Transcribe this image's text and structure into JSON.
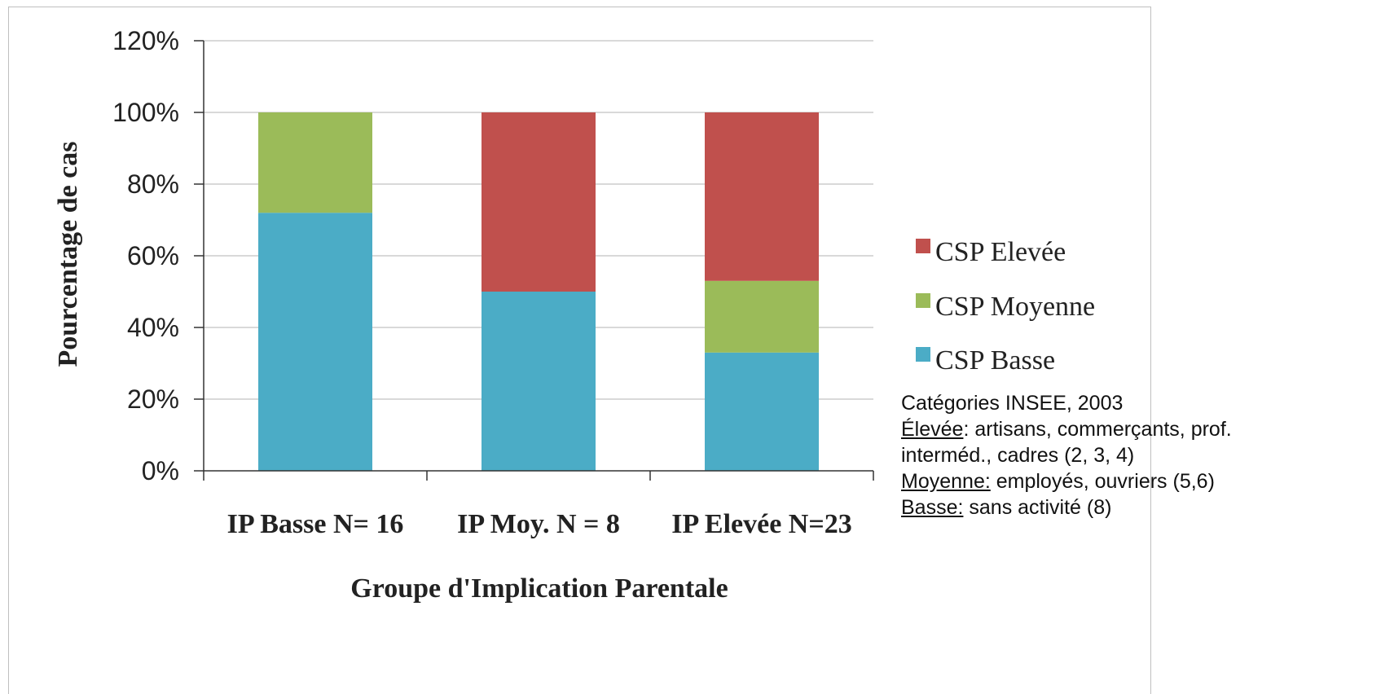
{
  "chart_data": {
    "type": "bar",
    "stacked": true,
    "categories": [
      "IP Basse  N= 16",
      "IP Moy. N = 8",
      "IP Elevée N=23"
    ],
    "series": [
      {
        "name": "CSP Basse",
        "color": "#4bacc6",
        "values": [
          72,
          50,
          33
        ]
      },
      {
        "name": "CSP Moyenne",
        "color": "#9bbb59",
        "values": [
          28,
          0,
          20
        ]
      },
      {
        "name": "CSP Elevée",
        "color": "#c0504d",
        "values": [
          0,
          50,
          47
        ]
      }
    ],
    "xlabel": "Groupe d'Implication Parentale",
    "ylabel": "Pourcentage de cas",
    "ylim": [
      0,
      120
    ],
    "yticks": [
      "0%",
      "20%",
      "40%",
      "60%",
      "80%",
      "100%",
      "120%"
    ],
    "grid": true,
    "legend_position": "right",
    "legend_order": [
      "CSP Elevée",
      "CSP Moyenne",
      "CSP Basse"
    ]
  },
  "note": {
    "title": "Catégories INSEE, 2003",
    "elevee_label": "Élevée",
    "elevee_text": ": artisans, commerçants, prof.",
    "elevee_text2": "interméd., cadres (2, 3, 4)",
    "moyenne_label": "Moyenne:",
    "moyenne_text": " employés, ouvriers (5,6)",
    "basse_label": "Basse:",
    "basse_text": " sans activité (8)"
  }
}
